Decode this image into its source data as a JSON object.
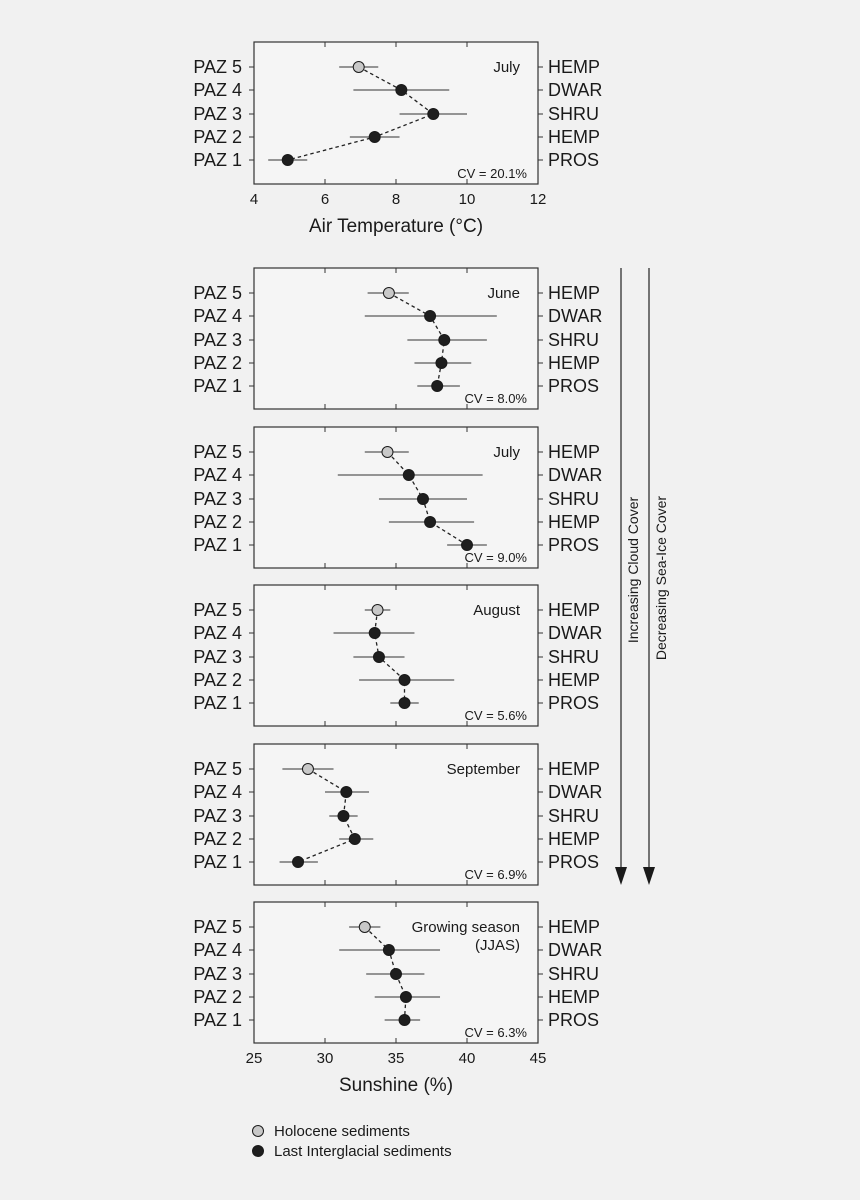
{
  "chart_data": [
    {
      "type": "scatter",
      "title": "July",
      "cv": "CV = 20.1%",
      "rows": [
        "PAZ 5",
        "PAZ 4",
        "PAZ 3",
        "PAZ 2",
        "PAZ 1"
      ],
      "right_labels": [
        "HEMP",
        "DWAR",
        "SHRU",
        "HEMP",
        "PROS"
      ],
      "series": [
        {
          "name": "Holocene sediments",
          "points": [
            {
              "row": "PAZ 5",
              "x": 6.95,
              "lo": 6.4,
              "hi": 7.5
            }
          ]
        },
        {
          "name": "Last Interglacial sediments",
          "points": [
            {
              "row": "PAZ 4",
              "x": 8.15,
              "lo": 6.8,
              "hi": 9.5
            },
            {
              "row": "PAZ 3",
              "x": 9.05,
              "lo": 8.1,
              "hi": 10.0
            },
            {
              "row": "PAZ 2",
              "x": 7.4,
              "lo": 6.7,
              "hi": 8.1
            },
            {
              "row": "PAZ 1",
              "x": 4.95,
              "lo": 4.4,
              "hi": 5.5
            }
          ]
        }
      ],
      "xlim": [
        4,
        12
      ],
      "xticks": [
        "4",
        "6",
        "8",
        "10",
        "12"
      ],
      "xlabel": "Air Temperature (°C)"
    },
    {
      "type": "scatter",
      "title": "June",
      "cv": "CV = 8.0%",
      "rows": [
        "PAZ 5",
        "PAZ 4",
        "PAZ 3",
        "PAZ 2",
        "PAZ 1"
      ],
      "right_labels": [
        "HEMP",
        "DWAR",
        "SHRU",
        "HEMP",
        "PROS"
      ],
      "series": [
        {
          "name": "Holocene sediments",
          "points": [
            {
              "row": "PAZ 5",
              "x": 34.5,
              "lo": 33.0,
              "hi": 35.9
            }
          ]
        },
        {
          "name": "Last Interglacial sediments",
          "points": [
            {
              "row": "PAZ 4",
              "x": 37.4,
              "lo": 32.8,
              "hi": 42.1
            },
            {
              "row": "PAZ 3",
              "x": 38.4,
              "lo": 35.8,
              "hi": 41.4
            },
            {
              "row": "PAZ 2",
              "x": 38.2,
              "lo": 36.3,
              "hi": 40.3
            },
            {
              "row": "PAZ 1",
              "x": 37.9,
              "lo": 36.5,
              "hi": 39.5
            }
          ]
        }
      ],
      "xlim": [
        25,
        45
      ]
    },
    {
      "type": "scatter",
      "title": "July",
      "cv": "CV = 9.0%",
      "rows": [
        "PAZ 5",
        "PAZ 4",
        "PAZ 3",
        "PAZ 2",
        "PAZ 1"
      ],
      "right_labels": [
        "HEMP",
        "DWAR",
        "SHRU",
        "HEMP",
        "PROS"
      ],
      "series": [
        {
          "name": "Holocene sediments",
          "points": [
            {
              "row": "PAZ 5",
              "x": 34.4,
              "lo": 32.8,
              "hi": 35.9
            }
          ]
        },
        {
          "name": "Last Interglacial sediments",
          "points": [
            {
              "row": "PAZ 4",
              "x": 35.9,
              "lo": 30.9,
              "hi": 41.1
            },
            {
              "row": "PAZ 3",
              "x": 36.9,
              "lo": 33.8,
              "hi": 40.0
            },
            {
              "row": "PAZ 2",
              "x": 37.4,
              "lo": 34.5,
              "hi": 40.5
            },
            {
              "row": "PAZ 1",
              "x": 40.0,
              "lo": 38.6,
              "hi": 41.4
            }
          ]
        }
      ],
      "xlim": [
        25,
        45
      ]
    },
    {
      "type": "scatter",
      "title": "August",
      "cv": "CV = 5.6%",
      "rows": [
        "PAZ 5",
        "PAZ 4",
        "PAZ 3",
        "PAZ 2",
        "PAZ 1"
      ],
      "right_labels": [
        "HEMP",
        "DWAR",
        "SHRU",
        "HEMP",
        "PROS"
      ],
      "series": [
        {
          "name": "Holocene sediments",
          "points": [
            {
              "row": "PAZ 5",
              "x": 33.7,
              "lo": 32.8,
              "hi": 34.6
            }
          ]
        },
        {
          "name": "Last Interglacial sediments",
          "points": [
            {
              "row": "PAZ 4",
              "x": 33.5,
              "lo": 30.6,
              "hi": 36.3
            },
            {
              "row": "PAZ 3",
              "x": 33.8,
              "lo": 32.0,
              "hi": 35.6
            },
            {
              "row": "PAZ 2",
              "x": 35.6,
              "lo": 32.4,
              "hi": 39.1
            },
            {
              "row": "PAZ 1",
              "x": 35.6,
              "lo": 34.6,
              "hi": 36.6
            }
          ]
        }
      ],
      "xlim": [
        25,
        45
      ]
    },
    {
      "type": "scatter",
      "title": "September",
      "cv": "CV = 6.9%",
      "rows": [
        "PAZ 5",
        "PAZ 4",
        "PAZ 3",
        "PAZ 2",
        "PAZ 1"
      ],
      "right_labels": [
        "HEMP",
        "DWAR",
        "SHRU",
        "HEMP",
        "PROS"
      ],
      "series": [
        {
          "name": "Holocene sediments",
          "points": [
            {
              "row": "PAZ 5",
              "x": 28.8,
              "lo": 27.0,
              "hi": 30.6
            }
          ]
        },
        {
          "name": "Last Interglacial sediments",
          "points": [
            {
              "row": "PAZ 4",
              "x": 31.5,
              "lo": 30.0,
              "hi": 33.1
            },
            {
              "row": "PAZ 3",
              "x": 31.3,
              "lo": 30.3,
              "hi": 32.3
            },
            {
              "row": "PAZ 2",
              "x": 32.1,
              "lo": 31.0,
              "hi": 33.4
            },
            {
              "row": "PAZ 1",
              "x": 28.1,
              "lo": 26.8,
              "hi": 29.5
            }
          ]
        }
      ],
      "xlim": [
        25,
        45
      ]
    },
    {
      "type": "scatter",
      "title": "Growing season",
      "title2": "(JJAS)",
      "cv": "CV = 6.3%",
      "rows": [
        "PAZ 5",
        "PAZ 4",
        "PAZ 3",
        "PAZ 2",
        "PAZ 1"
      ],
      "right_labels": [
        "HEMP",
        "DWAR",
        "SHRU",
        "HEMP",
        "PROS"
      ],
      "series": [
        {
          "name": "Holocene sediments",
          "points": [
            {
              "row": "PAZ 5",
              "x": 32.8,
              "lo": 31.7,
              "hi": 33.9
            }
          ]
        },
        {
          "name": "Last Interglacial sediments",
          "points": [
            {
              "row": "PAZ 4",
              "x": 34.5,
              "lo": 31.0,
              "hi": 38.1
            },
            {
              "row": "PAZ 3",
              "x": 35.0,
              "lo": 32.9,
              "hi": 37.0
            },
            {
              "row": "PAZ 2",
              "x": 35.7,
              "lo": 33.5,
              "hi": 38.1
            },
            {
              "row": "PAZ 1",
              "x": 35.6,
              "lo": 34.2,
              "hi": 36.7
            }
          ]
        }
      ],
      "xlim": [
        25,
        45
      ],
      "xticks": [
        "25",
        "30",
        "35",
        "40",
        "45"
      ],
      "xlabel": "Sunshine (%)"
    }
  ],
  "side_labels": [
    "Increasing Cloud Cover",
    "Decreasing Sea-Ice Cover"
  ],
  "legend": [
    {
      "label": "Holocene sediments",
      "fill": "#c8c8c8"
    },
    {
      "label": "Last Interglacial sediments",
      "fill": "#1e1e1e"
    }
  ]
}
